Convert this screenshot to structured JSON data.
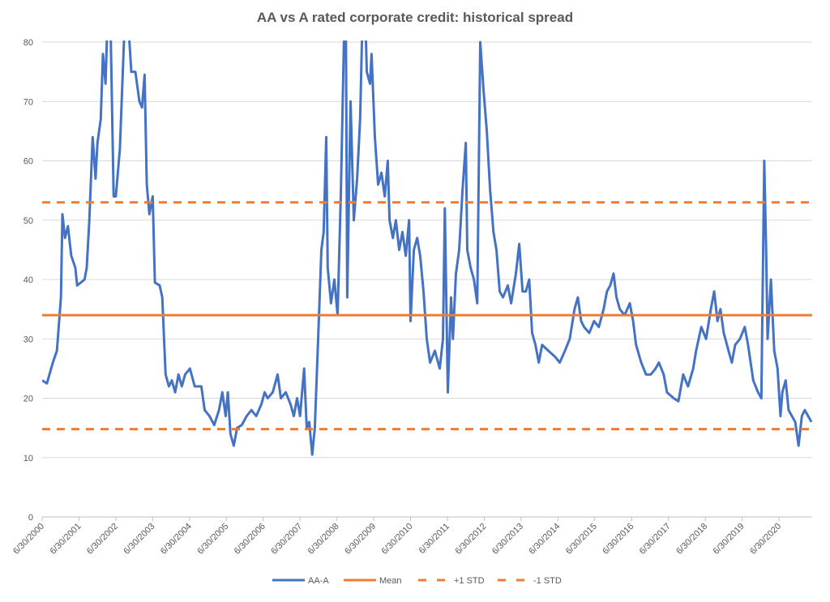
{
  "chart_data": {
    "type": "line",
    "title": "AA vs A rated corporate credit: historical spread",
    "xlabel": "",
    "ylabel": "",
    "ylim": [
      0,
      80
    ],
    "yticks": [
      0,
      10,
      20,
      30,
      40,
      50,
      60,
      70,
      80
    ],
    "grid": true,
    "legend_position": "bottom",
    "x_unit": "years since 6/30/2000",
    "xlim": [
      0,
      20.9
    ],
    "xtick_labels": [
      "6/30/2000",
      "6/30/2001",
      "6/30/2002",
      "6/30/2003",
      "6/30/2004",
      "6/30/2005",
      "6/30/2006",
      "6/30/2007",
      "6/30/2008",
      "6/30/2009",
      "6/30/2010",
      "6/30/2011",
      "6/30/2012",
      "6/30/2013",
      "6/30/2014",
      "6/30/2015",
      "6/30/2016",
      "6/30/2017",
      "6/30/2018",
      "6/30/2019",
      "6/30/2020"
    ],
    "series": [
      {
        "name": "AA-A",
        "color": "#4472C4",
        "style": "solid",
        "x": [
          0,
          0.13,
          0.29,
          0.4,
          0.51,
          0.55,
          0.62,
          0.7,
          0.79,
          0.9,
          0.95,
          1.15,
          1.21,
          1.28,
          1.37,
          1.45,
          1.5,
          1.59,
          1.65,
          1.72,
          1.78,
          1.85,
          1.94,
          2.0,
          2.11,
          2.22,
          2.29,
          2.42,
          2.53,
          2.64,
          2.71,
          2.78,
          2.84,
          2.91,
          3.0,
          3.06,
          3.19,
          3.26,
          3.35,
          3.44,
          3.52,
          3.61,
          3.7,
          3.79,
          3.88,
          4.01,
          4.14,
          4.32,
          4.41,
          4.54,
          4.67,
          4.8,
          4.89,
          4.98,
          5.04,
          5.11,
          5.2,
          5.29,
          5.42,
          5.55,
          5.68,
          5.81,
          5.95,
          6.04,
          6.12,
          6.26,
          6.39,
          6.48,
          6.61,
          6.74,
          6.83,
          6.92,
          7.0,
          7.11,
          7.18,
          7.25,
          7.33,
          7.4,
          7.49,
          7.58,
          7.64,
          7.71,
          7.75,
          7.84,
          7.93,
          8.02,
          8.11,
          8.19,
          8.24,
          8.28,
          8.37,
          8.46,
          8.55,
          8.63,
          8.68,
          8.77,
          8.81,
          8.9,
          8.94,
          9.03,
          9.12,
          9.21,
          9.3,
          9.38,
          9.43,
          9.52,
          9.6,
          9.69,
          9.78,
          9.87,
          9.96,
          10.0,
          10.09,
          10.18,
          10.26,
          10.35,
          10.44,
          10.53,
          10.66,
          10.79,
          10.88,
          10.93,
          11.01,
          11.1,
          11.15,
          11.23,
          11.32,
          11.41,
          11.5,
          11.54,
          11.63,
          11.72,
          11.81,
          11.89,
          11.98,
          12.07,
          12.16,
          12.25,
          12.33,
          12.42,
          12.51,
          12.64,
          12.73,
          12.86,
          12.95,
          13.04,
          13.13,
          13.22,
          13.3,
          13.39,
          13.48,
          13.57,
          13.74,
          13.92,
          14.05,
          14.19,
          14.32,
          14.45,
          14.54,
          14.63,
          14.71,
          14.85,
          14.98,
          15.11,
          15.24,
          15.33,
          15.42,
          15.51,
          15.59,
          15.68,
          15.81,
          15.95,
          16.04,
          16.12,
          16.26,
          16.39,
          16.52,
          16.65,
          16.74,
          16.87,
          16.96,
          17.14,
          17.27,
          17.4,
          17.53,
          17.67,
          17.75,
          17.89,
          18.02,
          18.15,
          18.24,
          18.33,
          18.41,
          18.5,
          18.63,
          18.72,
          18.81,
          18.94,
          19.07,
          19.16,
          19.3,
          19.43,
          19.52,
          19.6,
          19.65,
          19.69,
          19.78,
          19.87,
          19.96,
          20.04,
          20.09,
          20.18,
          20.26,
          20.35,
          20.44,
          20.53,
          20.62,
          20.7,
          20.79,
          20.88
        ],
        "y": [
          23,
          22.5,
          26,
          28,
          37,
          51,
          47,
          49,
          44,
          42,
          39,
          40,
          42,
          50,
          64,
          57,
          63,
          67,
          78,
          73,
          85,
          85,
          54,
          54,
          62,
          80,
          88,
          75,
          75,
          70,
          69,
          74.5,
          56,
          51,
          54,
          39.5,
          39,
          37,
          24,
          22,
          23,
          21,
          24,
          22,
          24,
          25,
          22,
          22,
          18,
          17,
          15.5,
          18,
          21,
          17,
          21,
          14,
          12,
          15,
          15.5,
          17,
          18,
          17,
          19,
          21,
          20,
          21,
          24,
          20,
          21,
          19,
          17,
          20,
          17,
          25,
          15,
          16,
          10.5,
          15,
          30,
          45,
          48,
          64,
          42,
          36,
          40,
          34,
          55,
          80,
          90,
          37,
          70,
          50,
          57,
          67,
          80,
          85,
          75,
          73,
          78,
          64,
          56,
          58,
          54,
          60,
          50,
          47,
          50,
          45,
          48,
          44,
          50,
          33,
          45,
          47,
          44,
          38,
          30,
          26,
          28,
          25,
          30,
          52,
          21,
          37,
          30,
          41,
          45,
          55,
          63,
          45,
          42,
          40,
          36,
          80,
          72,
          65,
          55,
          48,
          45,
          38,
          37,
          39,
          36,
          41,
          46,
          38,
          38,
          40,
          31,
          29,
          26,
          29,
          28,
          27,
          26,
          28,
          30,
          35,
          37,
          33,
          32,
          31,
          33,
          32,
          35,
          38,
          39,
          41,
          37,
          35,
          34,
          36,
          33,
          29,
          26,
          24,
          24,
          25,
          26,
          24,
          21,
          20,
          19.5,
          24,
          22,
          25,
          28,
          32,
          30,
          35,
          38,
          33,
          35,
          31,
          28,
          26,
          29,
          30,
          32,
          29,
          23,
          21,
          20,
          60,
          45,
          30,
          40,
          28,
          25,
          17,
          21,
          23,
          18,
          17,
          16,
          12,
          17,
          18,
          17,
          16
        ]
      },
      {
        "name": "Mean",
        "color": "#ED7D31",
        "style": "solid",
        "value": 34
      },
      {
        "name": "+1 STD",
        "color": "#ED7D31",
        "style": "dashed",
        "value": 53
      },
      {
        "name": "-1 STD",
        "color": "#ED7D31",
        "style": "dashed",
        "value": 14.8
      }
    ]
  }
}
